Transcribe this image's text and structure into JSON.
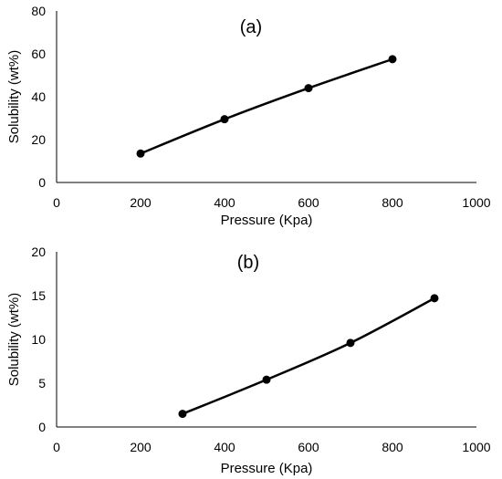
{
  "chart_data": [
    {
      "type": "line",
      "title": "(a)",
      "xlabel": "Pressure (Kpa)",
      "ylabel": "Solubility (wt%)",
      "xlim": [
        0,
        1000
      ],
      "ylim": [
        0,
        80
      ],
      "xticks": [
        0,
        200,
        400,
        600,
        800,
        1000
      ],
      "yticks": [
        0,
        20,
        40,
        60,
        80
      ],
      "grid": false,
      "series": [
        {
          "x": [
            200,
            400,
            600,
            800
          ],
          "values": [
            13.5,
            29.5,
            44,
            57.5
          ]
        }
      ]
    },
    {
      "type": "line",
      "title": "(b)",
      "xlabel": "Pressure (Kpa)",
      "ylabel": "Solubility (wt%)",
      "xlim": [
        0,
        1000
      ],
      "ylim": [
        0,
        20
      ],
      "xticks": [
        0,
        200,
        400,
        600,
        800,
        1000
      ],
      "yticks": [
        0,
        5,
        10,
        15,
        20
      ],
      "grid": false,
      "series": [
        {
          "x": [
            300,
            500,
            700,
            900
          ],
          "values": [
            1.5,
            5.4,
            9.6,
            14.7
          ]
        }
      ]
    }
  ]
}
